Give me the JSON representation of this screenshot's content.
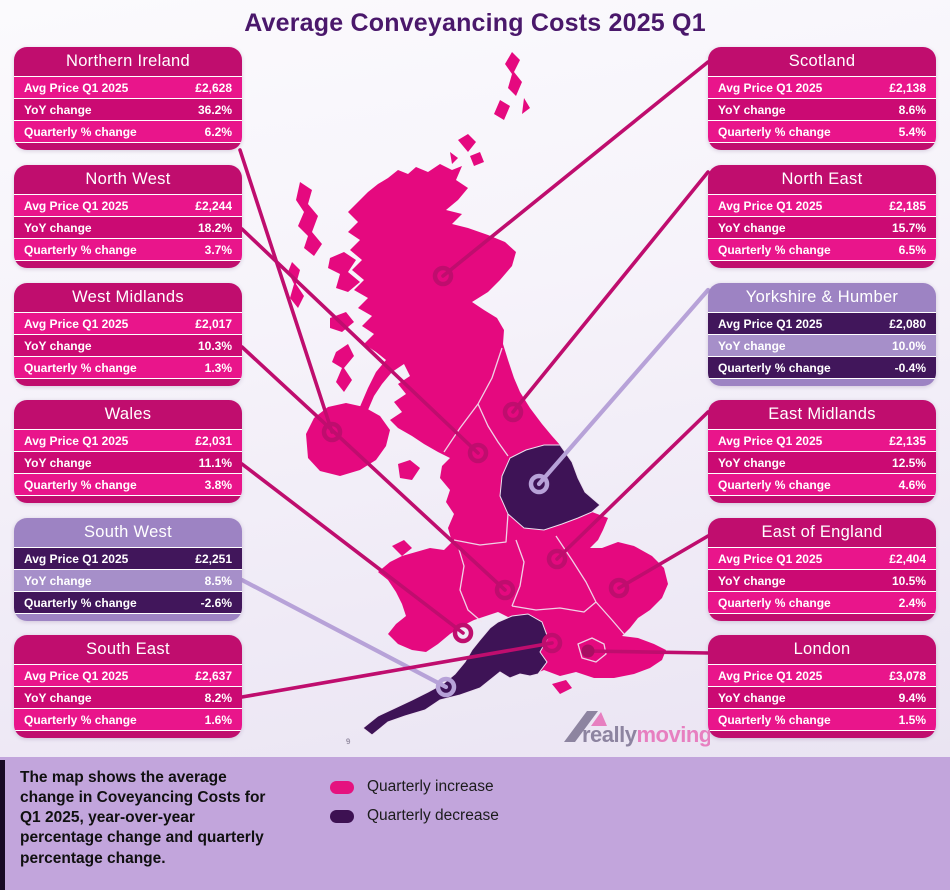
{
  "title": "Average Conveyancing Costs 2025 Q1",
  "cards": {
    "left": [
      {
        "region": "Northern Ireland",
        "theme": "pink",
        "rows": [
          {
            "label": "Avg Price Q1 2025",
            "value": "£2,628"
          },
          {
            "label": "YoY change",
            "value": "36.2%"
          },
          {
            "label": "Quarterly % change",
            "value": "6.2%"
          }
        ]
      },
      {
        "region": "North West",
        "theme": "pink",
        "rows": [
          {
            "label": "Avg Price Q1 2025",
            "value": "£2,244"
          },
          {
            "label": "YoY change",
            "value": "18.2%"
          },
          {
            "label": "Quarterly % change",
            "value": "3.7%"
          }
        ]
      },
      {
        "region": "West Midlands",
        "theme": "pink",
        "rows": [
          {
            "label": "Avg Price Q1 2025",
            "value": "£2,017"
          },
          {
            "label": "YoY change",
            "value": "10.3%"
          },
          {
            "label": "Quarterly % change",
            "value": "1.3%"
          }
        ]
      },
      {
        "region": "Wales",
        "theme": "pink",
        "rows": [
          {
            "label": "Avg Price Q1 2025",
            "value": "£2,031"
          },
          {
            "label": "YoY change",
            "value": "11.1%"
          },
          {
            "label": "Quarterly % change",
            "value": "3.8%"
          }
        ]
      },
      {
        "region": "South West",
        "theme": "purple",
        "rows": [
          {
            "label": "Avg Price Q1 2025",
            "value": "£2,251"
          },
          {
            "label": "YoY change",
            "value": "8.5%"
          },
          {
            "label": "Quarterly % change",
            "value": "-2.6%"
          }
        ]
      },
      {
        "region": "South East",
        "theme": "pink",
        "rows": [
          {
            "label": "Avg Price Q1 2025",
            "value": "£2,637"
          },
          {
            "label": "YoY change",
            "value": "8.2%"
          },
          {
            "label": "Quarterly % change",
            "value": "1.6%"
          }
        ]
      }
    ],
    "right": [
      {
        "region": "Scotland",
        "theme": "pink",
        "rows": [
          {
            "label": "Avg Price Q1 2025",
            "value": "£2,138"
          },
          {
            "label": "YoY change",
            "value": "8.6%"
          },
          {
            "label": "Quarterly % change",
            "value": "5.4%"
          }
        ]
      },
      {
        "region": "North East",
        "theme": "pink",
        "rows": [
          {
            "label": "Avg Price Q1 2025",
            "value": "£2,185"
          },
          {
            "label": "YoY change",
            "value": "15.7%"
          },
          {
            "label": "Quarterly % change",
            "value": "6.5%"
          }
        ]
      },
      {
        "region": "Yorkshire & Humber",
        "theme": "purple",
        "rows": [
          {
            "label": "Avg Price Q1 2025",
            "value": "£2,080"
          },
          {
            "label": "YoY change",
            "value": "10.0%"
          },
          {
            "label": "Quarterly % change",
            "value": "-0.4%"
          }
        ]
      },
      {
        "region": "East Midlands",
        "theme": "pink",
        "rows": [
          {
            "label": "Avg Price Q1 2025",
            "value": "£2,135"
          },
          {
            "label": "YoY change",
            "value": "12.5%"
          },
          {
            "label": "Quarterly % change",
            "value": "4.6%"
          }
        ]
      },
      {
        "region": "East of England",
        "theme": "pink",
        "rows": [
          {
            "label": "Avg Price Q1 2025",
            "value": "£2,404"
          },
          {
            "label": "YoY change",
            "value": "10.5%"
          },
          {
            "label": "Quarterly % change",
            "value": "2.4%"
          }
        ]
      },
      {
        "region": "London",
        "theme": "pink",
        "rows": [
          {
            "label": "Avg Price Q1 2025",
            "value": "£3,078"
          },
          {
            "label": "YoY change",
            "value": "9.4%"
          },
          {
            "label": "Quarterly % change",
            "value": "1.5%"
          }
        ]
      }
    ]
  },
  "legend": {
    "items": [
      {
        "label": "Quarterly increase",
        "color": "#e5127f"
      },
      {
        "label": "Quarterly decrease",
        "color": "#3d1152"
      }
    ]
  },
  "footnote_lines": [
    "The map shows the average",
    "change in Coveyancing Costs for",
    "Q1 2025, year-over-year",
    "percentage change and quarterly",
    "percentage change."
  ],
  "logo": {
    "part1": "really",
    "part2": "moving"
  },
  "map_mark": "9",
  "colors": {
    "title_text": "#4a186b",
    "map_region_increase": "#e5097f",
    "map_region_decrease": "#3e1356",
    "connector_pink": "#bf0d6e",
    "connector_purple": "#b7a2d8",
    "bottom_bar": "#c2a5dc",
    "card_pink_header": "#c00d6e",
    "card_pink_row_bright": "#e9158b",
    "card_pink_row_mid": "#cb0a73",
    "card_purple_header": "#9d83c3",
    "card_purple_row_dark": "#41165b",
    "card_purple_row_light": "#a68fc9",
    "logo_gray": "#8d84a0",
    "logo_pink": "#e77fc0"
  },
  "chart_data": {
    "type": "table",
    "title": "Average Conveyancing Costs 2025 Q1",
    "columns": [
      "Region",
      "Avg Price Q1 2025",
      "YoY change",
      "Quarterly % change"
    ],
    "rows": [
      [
        "Northern Ireland",
        "£2,628",
        "36.2%",
        "6.2%"
      ],
      [
        "North West",
        "£2,244",
        "18.2%",
        "3.7%"
      ],
      [
        "West Midlands",
        "£2,017",
        "10.3%",
        "1.3%"
      ],
      [
        "Wales",
        "£2,031",
        "11.1%",
        "3.8%"
      ],
      [
        "South West",
        "£2,251",
        "8.5%",
        "-2.6%"
      ],
      [
        "South East",
        "£2,637",
        "8.2%",
        "1.6%"
      ],
      [
        "Scotland",
        "£2,138",
        "8.6%",
        "5.4%"
      ],
      [
        "North East",
        "£2,185",
        "15.7%",
        "6.5%"
      ],
      [
        "Yorkshire & Humber",
        "£2,080",
        "10.0%",
        "-0.4%"
      ],
      [
        "East Midlands",
        "£2,135",
        "12.5%",
        "4.6%"
      ],
      [
        "East of England",
        "£2,404",
        "10.5%",
        "2.4%"
      ],
      [
        "London",
        "£3,078",
        "9.4%",
        "1.5%"
      ]
    ]
  }
}
